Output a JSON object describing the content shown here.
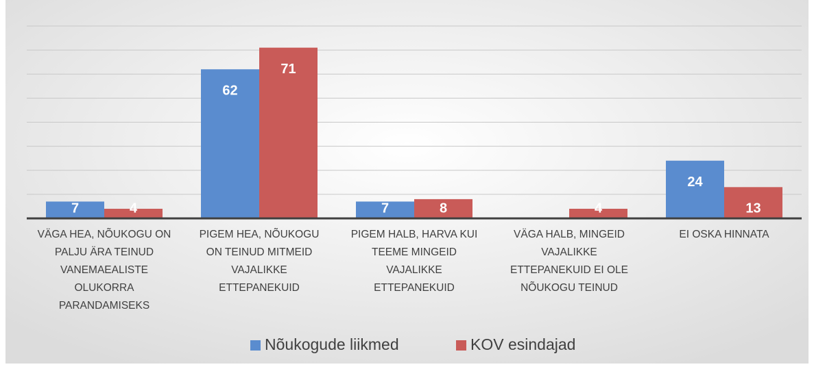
{
  "chart_data": {
    "type": "bar",
    "categories": [
      "VÄGA HEA, NÕUKOGU ON PALJU ÄRA TEINUD VANEMAEALISTE OLUKORRA PARANDAMISEKS",
      "PIGEM HEA, NÕUKOGU ON TEINUD MITMEID VAJALIKKE ETTEPANEKUID",
      "PIGEM HALB, HARVA KUI TEEME MINGEID VAJALIKKE ETTEPANEKUID",
      "VÄGA HALB, MINGEID VAJALIKKE ETTEPANEKUID EI OLE NÕUKOGU TEINUD",
      "EI OSKA HINNATA"
    ],
    "series": [
      {
        "name": "Nõukogude liikmed",
        "color": "#5a8ccf",
        "values": [
          7,
          62,
          7,
          null,
          24
        ]
      },
      {
        "name": "KOV esindajad",
        "color": "#c95b58",
        "values": [
          4,
          71,
          8,
          4,
          13
        ]
      }
    ],
    "ylim": [
      0,
      80
    ],
    "yticks": [
      0,
      10,
      20,
      30,
      40,
      50,
      60,
      70,
      80
    ],
    "grid": true,
    "legend": "bottom"
  }
}
